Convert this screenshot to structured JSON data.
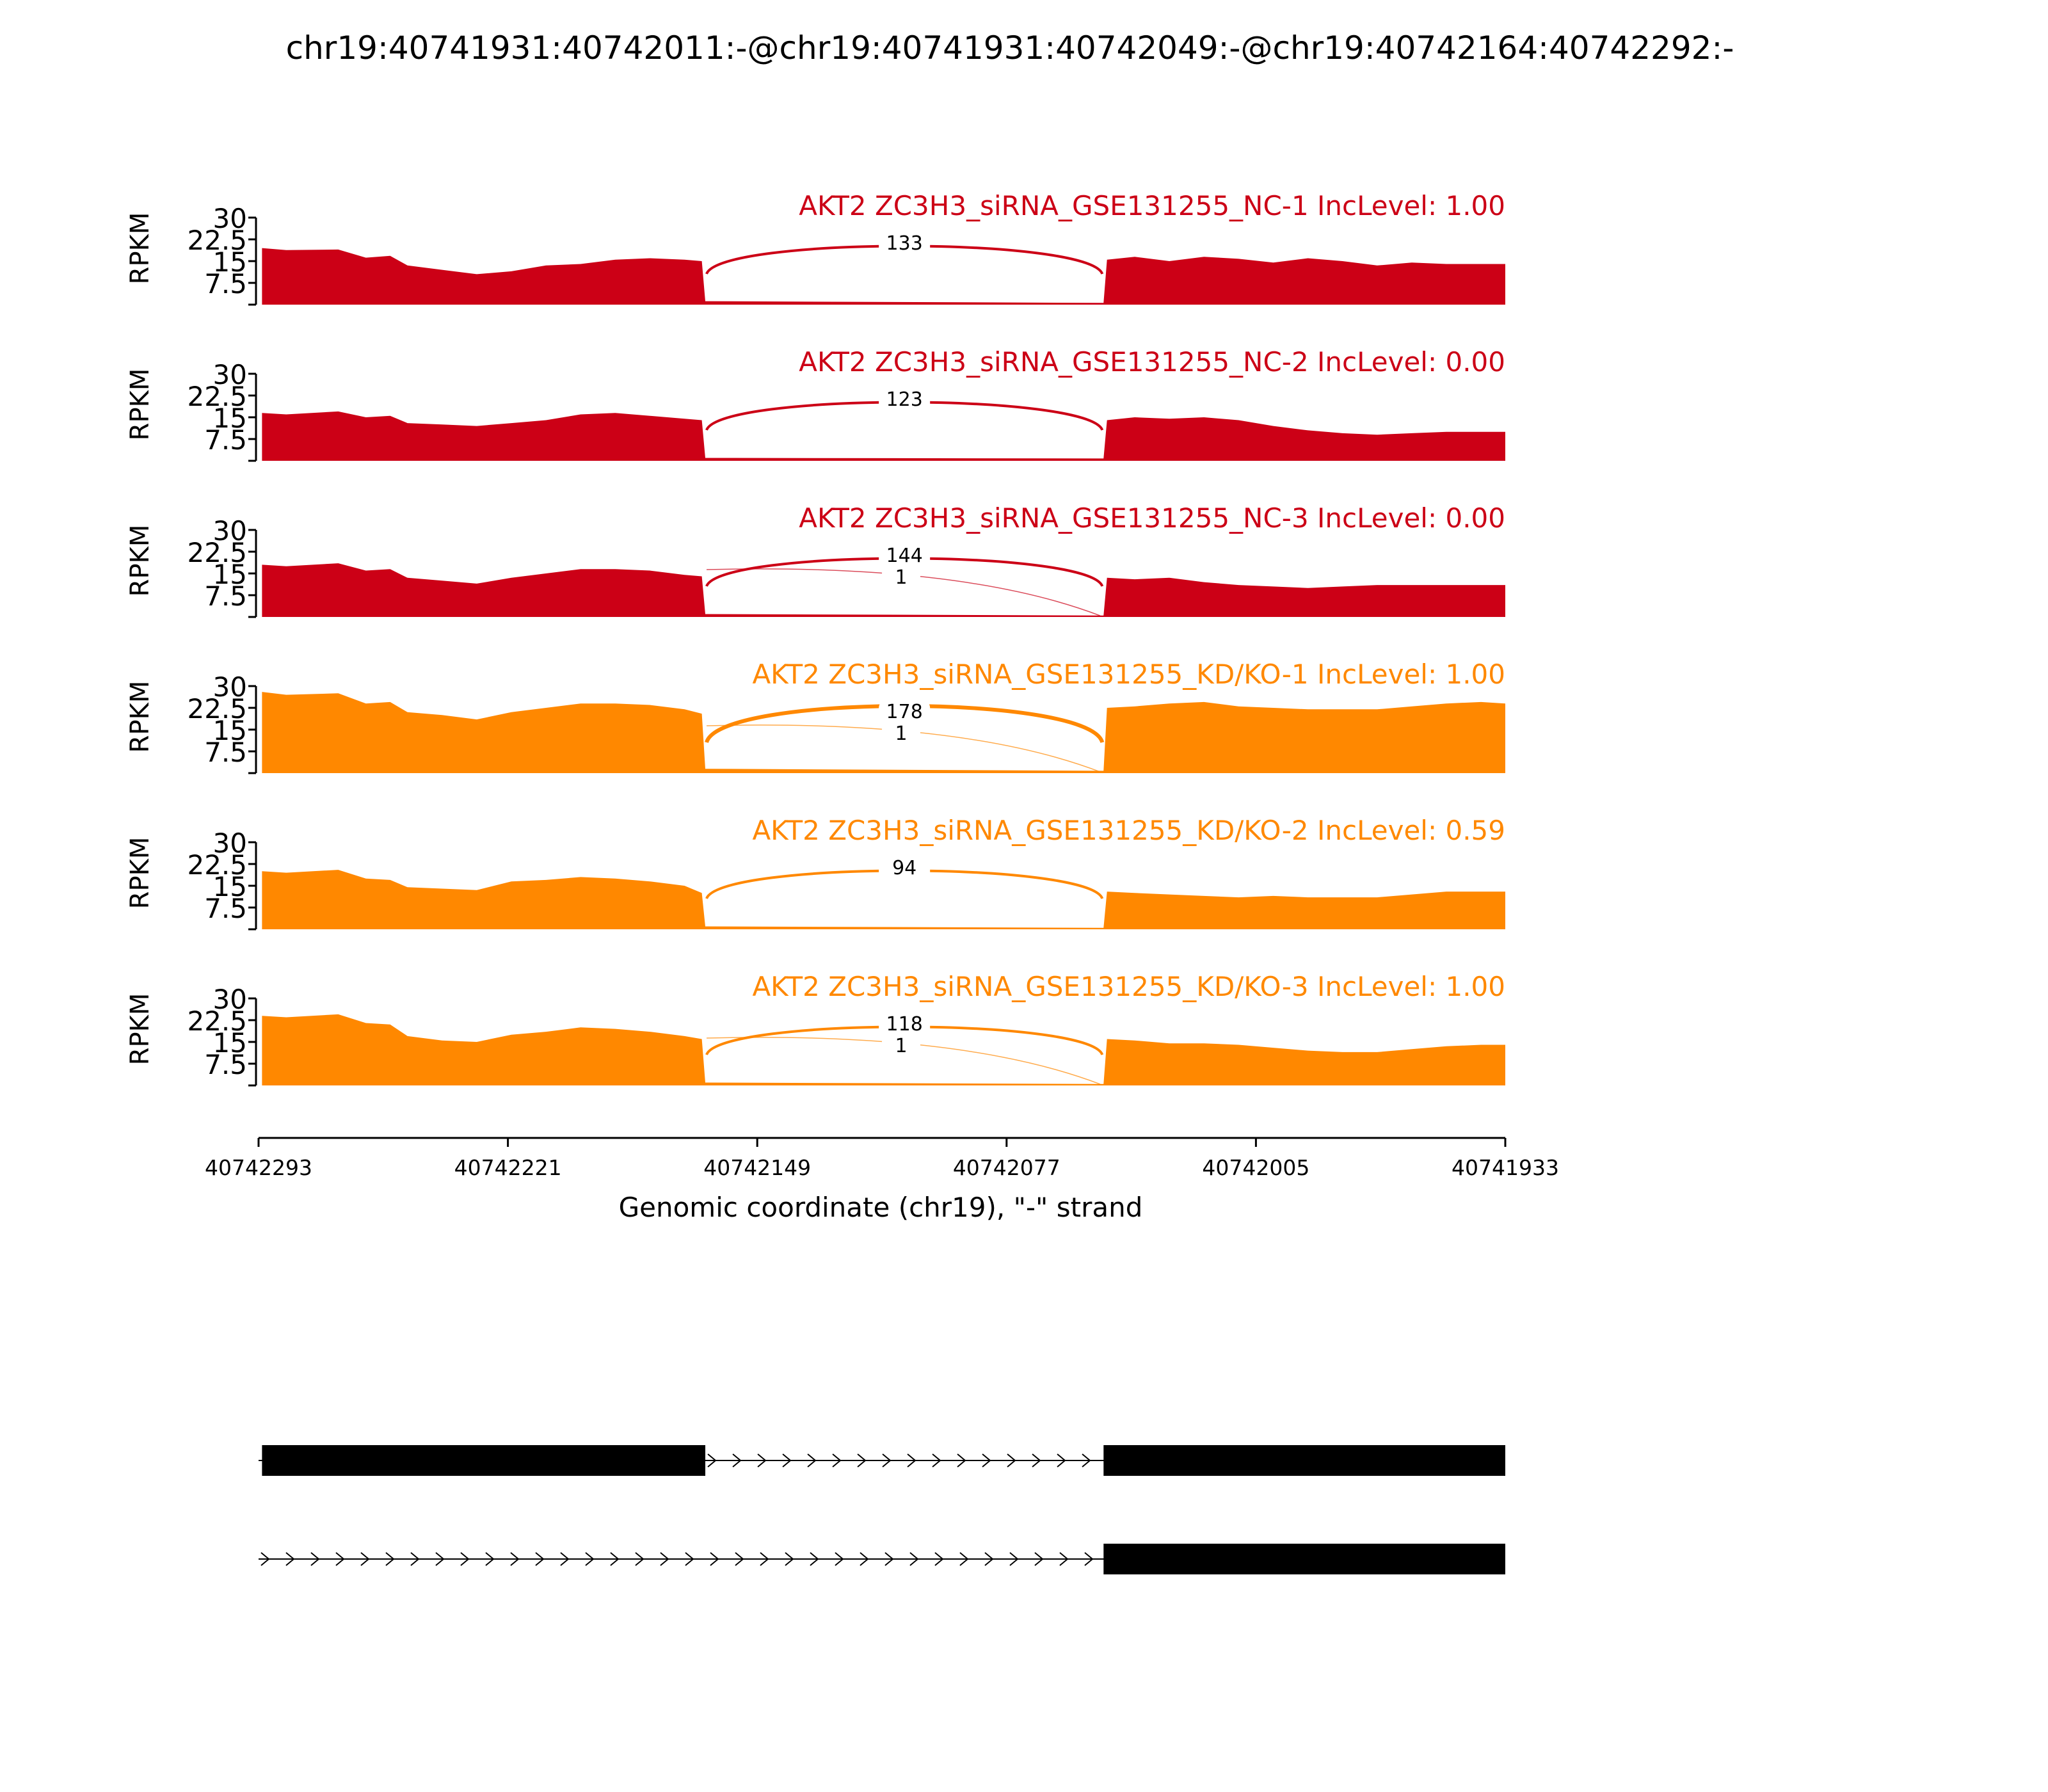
{
  "figure_title": "chr19:40741931:40742011:-@chr19:40741931:40742049:-@chr19:40742164:40742292:-",
  "chart_data": {
    "type": "area",
    "title": "chr19:40741931:40742011:-@chr19:40741931:40742049:-@chr19:40742164:40742292:-",
    "xlabel": "Genomic coordinate (chr19), \"-\" strand",
    "ylabel": "RPKM",
    "x_ticks": [
      "40742293",
      "40742221",
      "40742149",
      "40742077",
      "40742005",
      "40741933"
    ],
    "xlim": [
      40742293,
      40741933
    ],
    "ylim": [
      0,
      30
    ],
    "y_ticks": [
      "7.5",
      "15",
      "22.5",
      "30"
    ],
    "grid": false,
    "colors": {
      "NC": "#cc0016",
      "KD": "#ff8800"
    },
    "exon_regions": [
      [
        40742292,
        40742164
      ],
      [
        40742049,
        40741933
      ]
    ],
    "samples": [
      {
        "label": "AKT2 ZC3H3_siRNA_GSE131255_NC-1 IncLevel: 1.00",
        "group": "NC",
        "coverage": [
          [
            40742292,
            19.5
          ],
          [
            40742285,
            18.8
          ],
          [
            40742270,
            19.0
          ],
          [
            40742262,
            16.2
          ],
          [
            40742255,
            16.8
          ],
          [
            40742250,
            13.5
          ],
          [
            40742240,
            12.0
          ],
          [
            40742230,
            10.5
          ],
          [
            40742220,
            11.5
          ],
          [
            40742210,
            13.5
          ],
          [
            40742200,
            14.0
          ],
          [
            40742190,
            15.5
          ],
          [
            40742180,
            16.0
          ],
          [
            40742170,
            15.5
          ],
          [
            40742165,
            15.0
          ],
          [
            40742164,
            1.2
          ],
          [
            40742049,
            0.6
          ],
          [
            40742048,
            15.5
          ],
          [
            40742040,
            16.5
          ],
          [
            40742030,
            15.0
          ],
          [
            40742020,
            16.5
          ],
          [
            40742010,
            15.8
          ],
          [
            40742000,
            14.5
          ],
          [
            40741990,
            16.0
          ],
          [
            40741980,
            15.0
          ],
          [
            40741970,
            13.5
          ],
          [
            40741960,
            14.5
          ],
          [
            40741950,
            14.0
          ],
          [
            40741940,
            14.0
          ],
          [
            40741933,
            14.0
          ]
        ],
        "junctions": [
          {
            "count": "133",
            "from": 40742164,
            "to": 40742049
          }
        ]
      },
      {
        "label": "AKT2 ZC3H3_siRNA_GSE131255_NC-2 IncLevel: 0.00",
        "group": "NC",
        "coverage": [
          [
            40742292,
            16.5
          ],
          [
            40742285,
            16.0
          ],
          [
            40742270,
            17.0
          ],
          [
            40742262,
            15.0
          ],
          [
            40742255,
            15.5
          ],
          [
            40742250,
            13.0
          ],
          [
            40742240,
            12.5
          ],
          [
            40742230,
            12.0
          ],
          [
            40742220,
            13.0
          ],
          [
            40742210,
            14.0
          ],
          [
            40742200,
            16.0
          ],
          [
            40742190,
            16.5
          ],
          [
            40742180,
            15.5
          ],
          [
            40742170,
            14.5
          ],
          [
            40742165,
            14.0
          ],
          [
            40742164,
            1.0
          ],
          [
            40742049,
            0.8
          ],
          [
            40742048,
            14.0
          ],
          [
            40742040,
            15.0
          ],
          [
            40742030,
            14.5
          ],
          [
            40742020,
            15.0
          ],
          [
            40742010,
            14.0
          ],
          [
            40742000,
            12.0
          ],
          [
            40741990,
            10.5
          ],
          [
            40741980,
            9.5
          ],
          [
            40741970,
            9.0
          ],
          [
            40741960,
            9.5
          ],
          [
            40741950,
            10.0
          ],
          [
            40741940,
            10.0
          ],
          [
            40741933,
            10.0
          ]
        ],
        "junctions": [
          {
            "count": "123",
            "from": 40742164,
            "to": 40742049
          }
        ]
      },
      {
        "label": "AKT2 ZC3H3_siRNA_GSE131255_NC-3 IncLevel: 0.00",
        "group": "NC",
        "coverage": [
          [
            40742292,
            18.0
          ],
          [
            40742285,
            17.5
          ],
          [
            40742270,
            18.5
          ],
          [
            40742262,
            16.0
          ],
          [
            40742255,
            16.5
          ],
          [
            40742250,
            13.5
          ],
          [
            40742240,
            12.5
          ],
          [
            40742230,
            11.5
          ],
          [
            40742220,
            13.5
          ],
          [
            40742210,
            15.0
          ],
          [
            40742200,
            16.5
          ],
          [
            40742190,
            16.5
          ],
          [
            40742180,
            16.0
          ],
          [
            40742170,
            14.5
          ],
          [
            40742165,
            14.0
          ],
          [
            40742164,
            1.0
          ],
          [
            40742049,
            0.5
          ],
          [
            40742048,
            13.5
          ],
          [
            40742040,
            13.0
          ],
          [
            40742030,
            13.5
          ],
          [
            40742020,
            12.0
          ],
          [
            40742010,
            11.0
          ],
          [
            40742000,
            10.5
          ],
          [
            40741990,
            10.0
          ],
          [
            40741980,
            10.5
          ],
          [
            40741970,
            11.0
          ],
          [
            40741960,
            11.0
          ],
          [
            40741950,
            11.0
          ],
          [
            40741940,
            11.0
          ],
          [
            40741933,
            11.0
          ]
        ],
        "junctions": [
          {
            "count": "144",
            "from": 40742164,
            "to": 40742049
          },
          {
            "count": "1",
            "from": 40742164,
            "to": 40742049
          }
        ]
      },
      {
        "label": "AKT2 ZC3H3_siRNA_GSE131255_KD/KO-1 IncLevel: 1.00",
        "group": "KD",
        "coverage": [
          [
            40742292,
            28.0
          ],
          [
            40742285,
            27.0
          ],
          [
            40742270,
            27.5
          ],
          [
            40742262,
            24.0
          ],
          [
            40742255,
            24.5
          ],
          [
            40742250,
            21.0
          ],
          [
            40742240,
            20.0
          ],
          [
            40742230,
            18.5
          ],
          [
            40742220,
            21.0
          ],
          [
            40742210,
            22.5
          ],
          [
            40742200,
            24.0
          ],
          [
            40742190,
            24.0
          ],
          [
            40742180,
            23.5
          ],
          [
            40742170,
            22.0
          ],
          [
            40742165,
            20.5
          ],
          [
            40742164,
            1.5
          ],
          [
            40742049,
            0.8
          ],
          [
            40742048,
            22.5
          ],
          [
            40742040,
            23.0
          ],
          [
            40742030,
            24.0
          ],
          [
            40742020,
            24.5
          ],
          [
            40742010,
            23.0
          ],
          [
            40742000,
            22.5
          ],
          [
            40741990,
            22.0
          ],
          [
            40741980,
            22.0
          ],
          [
            40741970,
            22.0
          ],
          [
            40741960,
            23.0
          ],
          [
            40741950,
            24.0
          ],
          [
            40741940,
            24.5
          ],
          [
            40741933,
            24.0
          ]
        ],
        "junctions": [
          {
            "count": "178",
            "from": 40742164,
            "to": 40742049
          },
          {
            "count": "1",
            "from": 40742164,
            "to": 40742049
          }
        ]
      },
      {
        "label": "AKT2 ZC3H3_siRNA_GSE131255_KD/KO-2 IncLevel: 0.59",
        "group": "KD",
        "coverage": [
          [
            40742292,
            20.0
          ],
          [
            40742285,
            19.5
          ],
          [
            40742270,
            20.5
          ],
          [
            40742262,
            17.5
          ],
          [
            40742255,
            17.0
          ],
          [
            40742250,
            14.5
          ],
          [
            40742240,
            14.0
          ],
          [
            40742230,
            13.5
          ],
          [
            40742220,
            16.5
          ],
          [
            40742210,
            17.0
          ],
          [
            40742200,
            18.0
          ],
          [
            40742190,
            17.5
          ],
          [
            40742180,
            16.5
          ],
          [
            40742170,
            15.0
          ],
          [
            40742165,
            12.5
          ],
          [
            40742164,
            1.0
          ],
          [
            40742049,
            0.5
          ],
          [
            40742048,
            13.0
          ],
          [
            40742040,
            12.5
          ],
          [
            40742030,
            12.0
          ],
          [
            40742020,
            11.5
          ],
          [
            40742010,
            11.0
          ],
          [
            40742000,
            11.5
          ],
          [
            40741990,
            11.0
          ],
          [
            40741980,
            11.0
          ],
          [
            40741970,
            11.0
          ],
          [
            40741960,
            12.0
          ],
          [
            40741950,
            13.0
          ],
          [
            40741940,
            13.0
          ],
          [
            40741933,
            13.0
          ]
        ],
        "junctions": [
          {
            "count": "94",
            "from": 40742164,
            "to": 40742049
          }
        ]
      },
      {
        "label": "AKT2 ZC3H3_siRNA_GSE131255_KD/KO-3 IncLevel: 1.00",
        "group": "KD",
        "coverage": [
          [
            40742292,
            24.0
          ],
          [
            40742285,
            23.5
          ],
          [
            40742270,
            24.5
          ],
          [
            40742262,
            21.5
          ],
          [
            40742255,
            21.0
          ],
          [
            40742250,
            17.0
          ],
          [
            40742240,
            15.5
          ],
          [
            40742230,
            15.0
          ],
          [
            40742220,
            17.5
          ],
          [
            40742210,
            18.5
          ],
          [
            40742200,
            20.0
          ],
          [
            40742190,
            19.5
          ],
          [
            40742180,
            18.5
          ],
          [
            40742170,
            17.0
          ],
          [
            40742165,
            16.0
          ],
          [
            40742164,
            1.0
          ],
          [
            40742049,
            0.5
          ],
          [
            40742048,
            16.0
          ],
          [
            40742040,
            15.5
          ],
          [
            40742030,
            14.5
          ],
          [
            40742020,
            14.5
          ],
          [
            40742010,
            14.0
          ],
          [
            40742000,
            13.0
          ],
          [
            40741990,
            12.0
          ],
          [
            40741980,
            11.5
          ],
          [
            40741970,
            11.5
          ],
          [
            40741960,
            12.5
          ],
          [
            40741950,
            13.5
          ],
          [
            40741940,
            14.0
          ],
          [
            40741933,
            14.0
          ]
        ],
        "junctions": [
          {
            "count": "118",
            "from": 40742164,
            "to": 40742049
          },
          {
            "count": "1",
            "from": 40742164,
            "to": 40742049
          }
        ]
      }
    ],
    "isoforms": [
      {
        "exons": [
          [
            40742292,
            40742164
          ],
          [
            40742049,
            40741933
          ]
        ]
      },
      {
        "exons": [
          [
            40742049,
            40741933
          ]
        ]
      }
    ]
  }
}
